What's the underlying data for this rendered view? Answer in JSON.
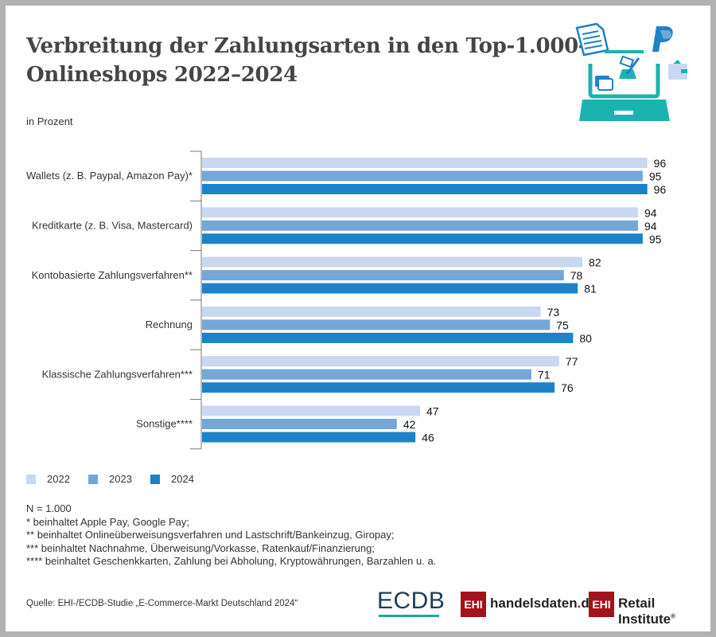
{
  "header": {
    "title_line1": "Verbreitung der Zahlungsarten in den Top-1.000-",
    "title_line2": "Onlineshops 2022–2024",
    "subtitle": "in Prozent"
  },
  "colors": {
    "2022": "#c9d8f0",
    "2023": "#74a7d8",
    "2024": "#1e82c8",
    "axis": "#777777",
    "ehi_red": "#a3131b",
    "ecdb_teal": "#1aaa9a",
    "illustration_teal": "#1bb3b0"
  },
  "chart_data": {
    "type": "bar",
    "orientation": "horizontal",
    "title": "Verbreitung der Zahlungsarten in den Top-1.000-Onlineshops 2022–2024",
    "ylabel": "",
    "xlabel": "in Prozent",
    "xlim": [
      0,
      100
    ],
    "grid": false,
    "legend_position": "bottom-left",
    "categories": [
      "Wallets (z. B. Paypal, Amazon Pay)*",
      "Kreditkarte (z. B. Visa, Mastercard)",
      "Kontobasierte Zahlungsverfahren**",
      "Rechnung",
      "Klassische Zahlungsverfahren***",
      "Sonstige****"
    ],
    "series": [
      {
        "name": "2022",
        "values": [
          96,
          94,
          82,
          73,
          77,
          47
        ]
      },
      {
        "name": "2023",
        "values": [
          95,
          94,
          78,
          75,
          71,
          42
        ]
      },
      {
        "name": "2024",
        "values": [
          96,
          95,
          81,
          80,
          76,
          46
        ]
      }
    ]
  },
  "legend": [
    {
      "label": "2022"
    },
    {
      "label": "2023"
    },
    {
      "label": "2024"
    }
  ],
  "notes": [
    "N = 1.000",
    "* beinhaltet Apple Pay, Google Pay;",
    "** beinhaltet Onlineüberweisungsverfahren und Lastschrift/Bankeinzug, Giropay;",
    "*** beinhaltet Nachnahme, Überweisung/Vorkasse, Ratenkauf/Finanzierung;",
    "**** beinhaltet Geschenkkarten, Zahlung bei Abholung, Kryptowährungen, Barzahlen u. a."
  ],
  "footer": {
    "source": "Quelle: EHI-/ECDB-Studie  „E-Commerce-Markt Deutschland 2024“",
    "logo_ecdb": "ECDB",
    "logo_ehi_box": "EHI",
    "logo_handelsdaten_a": "handelsdaten",
    "logo_handelsdaten_dot": ".",
    "logo_handelsdaten_b": "de",
    "logo_retail": "Retail Institute",
    "logo_retail_reg": "®"
  }
}
